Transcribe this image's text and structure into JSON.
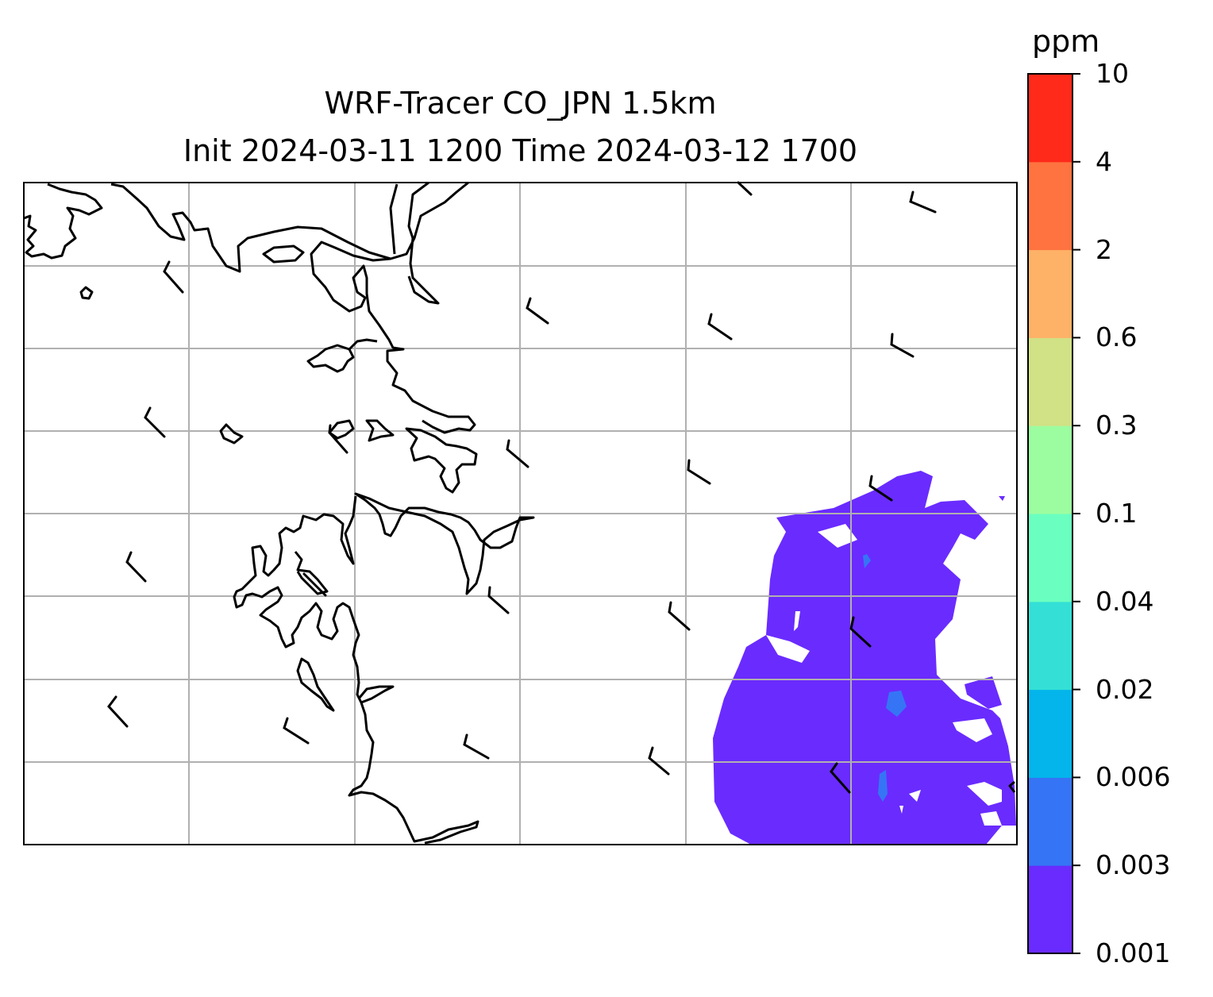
{
  "title": {
    "line1": "WRF-Tracer CO_JPN 1.5km",
    "line2": "Init 2024-03-11 1200 Time 2024-03-12 1700"
  },
  "colorbar": {
    "unit": "ppm",
    "levels": [
      "0.001",
      "0.003",
      "0.006",
      "0.02",
      "0.04",
      "0.1",
      "0.3",
      "0.6",
      "2",
      "4",
      "10"
    ],
    "colors": [
      "#6a2bff",
      "#3575f5",
      "#03b5eb",
      "#34e0d6",
      "#6affc0",
      "#9cfda0",
      "#d1e185",
      "#feb267",
      "#fe7340",
      "#ff2a1a"
    ]
  },
  "map": {
    "gridlines": "on",
    "gridline_color": "#b0b0b0",
    "coastline_color": "#000000",
    "tracer_field_color": "#6a2bff",
    "tracer_field_inner_color": "#3575f5",
    "wind_barbs": "short-barbs-black"
  }
}
